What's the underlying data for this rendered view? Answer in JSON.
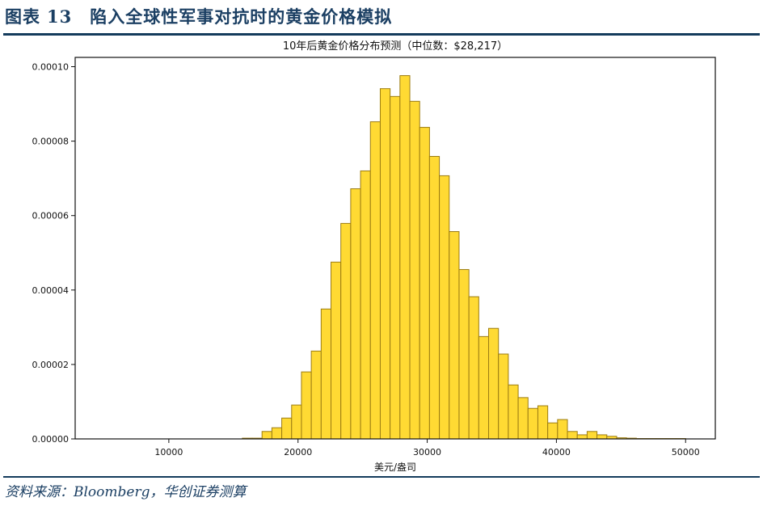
{
  "header": {
    "figure_label": "图表",
    "figure_number": "13",
    "figure_title": "陷入全球性军事对抗时的黄金价格模拟"
  },
  "footer": {
    "source": "资料来源：Bloomberg，华创证券测算"
  },
  "colors": {
    "bar_fill": "#FFDA33",
    "bar_edge": "#9C7C12",
    "header_text": "#1B3F63",
    "rule": "#143B5C",
    "axis": "#111111"
  },
  "chart_data": {
    "type": "bar",
    "subtype": "histogram",
    "title": "10年后黄金价格分布预测（中位数：$28,217）",
    "xlabel": "美元/盎司",
    "ylabel": "",
    "xlim": [
      2750,
      52300
    ],
    "ylim": [
      0,
      0.0001025
    ],
    "grid": false,
    "legend": null,
    "xticks": [
      10000,
      20000,
      30000,
      40000,
      50000
    ],
    "xtick_labels": [
      "10000",
      "20000",
      "30000",
      "40000",
      "50000"
    ],
    "yticks": [
      0,
      2e-05,
      4e-05,
      6e-05,
      8e-05,
      0.0001
    ],
    "ytick_labels": [
      "0.00000",
      "0.00002",
      "0.00004",
      "0.00006",
      "0.00008",
      "0.00010"
    ],
    "bin_start": 15690,
    "bin_width": 762.5,
    "values": [
      2e-07,
      2e-07,
      2e-06,
      3e-06,
      5.6e-06,
      9.1e-06,
      1.8e-05,
      2.36e-05,
      3.49e-05,
      4.75e-05,
      5.79e-05,
      6.72e-05,
      7.2e-05,
      8.52e-05,
      9.41e-05,
      9.2e-05,
      9.76e-05,
      9.07e-05,
      8.37e-05,
      7.59e-05,
      7.07e-05,
      5.57e-05,
      4.55e-05,
      3.82e-05,
      2.75e-05,
      2.97e-05,
      2.28e-05,
      1.45e-05,
      1.11e-05,
      8.2e-06,
      8.9e-06,
      4.3e-06,
      5.2e-06,
      2e-06,
      1.1e-06,
      2e-06,
      1.1e-06,
      7e-07,
      3e-07,
      2e-07,
      1e-07,
      1e-07,
      1e-07,
      1e-07,
      1e-07
    ],
    "median": 28217
  }
}
